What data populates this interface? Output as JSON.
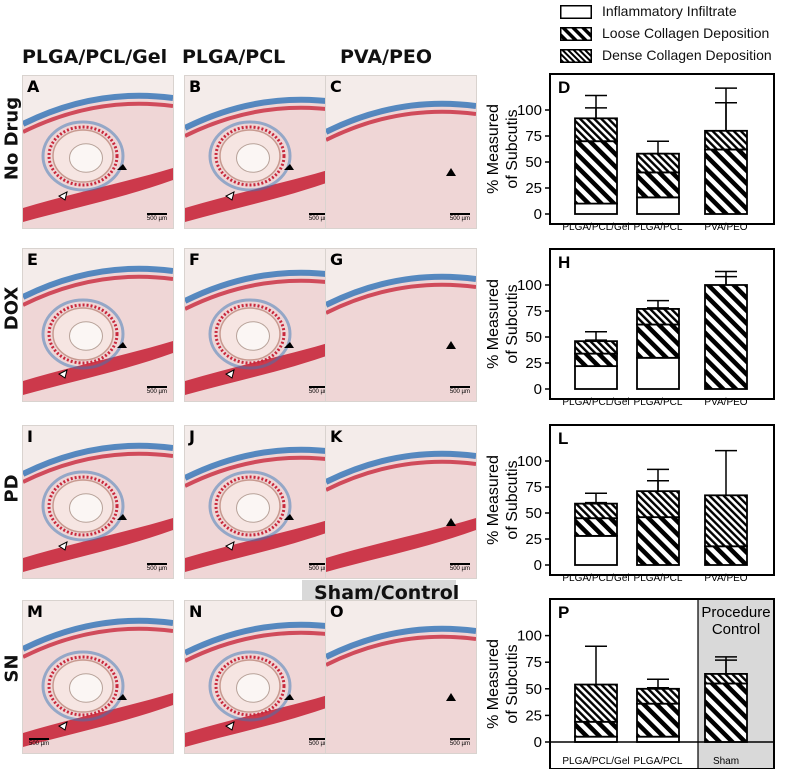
{
  "column_headers": [
    "PLGA/PCL/Gel",
    "PLGA/PCL",
    "PVA/PEO"
  ],
  "row_headers": [
    "No Drug",
    "DOX",
    "PD",
    "SN"
  ],
  "sham_header": "Sham/Control",
  "panel_letters": [
    "A",
    "B",
    "C",
    "E",
    "F",
    "G",
    "I",
    "J",
    "K",
    "M",
    "N",
    "O"
  ],
  "scale_labels": [
    "500 µm",
    "500 µm",
    "500 µm",
    "500 µm",
    "500 µm",
    "500 µm",
    "500 µm",
    "500 µm",
    "500 µm",
    "500 µm",
    "500 µm",
    "500 µm"
  ],
  "legend": [
    {
      "label": "Inflammatory Infiltrate",
      "pattern": "open"
    },
    {
      "label": "Loose Collagen Deposition",
      "pattern": "hatch-wide"
    },
    {
      "label": "Dense Collagen Deposition",
      "pattern": "hatch-dense"
    }
  ],
  "colors": {
    "stain_red": "#c8283c",
    "stain_blue": "#3a78b8",
    "tissue_pink": "#efd6d6",
    "sham_gray": "#d9d9d9"
  },
  "chart_data": [
    {
      "type": "bar",
      "letter": "D",
      "stacked": true,
      "ylabel": "% Measured of Subcutis",
      "ylim": [
        0,
        125
      ],
      "yticks": [
        0,
        25,
        50,
        75,
        100
      ],
      "categories": [
        "PLGA/PCL/Gel",
        "PLGA/PCL",
        "PVA/PEO"
      ],
      "series": [
        {
          "name": "Inflammatory Infiltrate",
          "values": [
            10,
            16,
            0
          ],
          "err": [
            22,
            13,
            0
          ]
        },
        {
          "name": "Loose Collagen Deposition",
          "values": [
            60,
            24,
            62
          ],
          "err": [
            32,
            18,
            45
          ]
        },
        {
          "name": "Dense Collagen Deposition",
          "values": [
            22,
            18,
            18
          ],
          "err": [
            22,
            12,
            41
          ]
        }
      ]
    },
    {
      "type": "bar",
      "letter": "H",
      "stacked": true,
      "ylabel": "% Measured of Subcutis",
      "ylim": [
        0,
        125
      ],
      "yticks": [
        0,
        25,
        50,
        75,
        100
      ],
      "categories": [
        "PLGA/PCL/Gel",
        "PLGA/PCL",
        "PVA/PEO"
      ],
      "series": [
        {
          "name": "Inflammatory Infiltrate",
          "values": [
            22,
            30,
            0
          ],
          "err": [
            14,
            24,
            0
          ]
        },
        {
          "name": "Loose Collagen Deposition",
          "values": [
            12,
            32,
            100
          ],
          "err": [
            13,
            16,
            8
          ]
        },
        {
          "name": "Dense Collagen Deposition",
          "values": [
            12,
            15,
            0
          ],
          "err": [
            9,
            8,
            13
          ]
        }
      ]
    },
    {
      "type": "bar",
      "letter": "L",
      "stacked": true,
      "ylabel": "% Measured of Subcutis",
      "ylim": [
        0,
        125
      ],
      "yticks": [
        0,
        25,
        50,
        75,
        100
      ],
      "categories": [
        "PLGA/PCL/Gel",
        "PLGA/PCL",
        "PVA/PEO"
      ],
      "series": [
        {
          "name": "Inflammatory Infiltrate",
          "values": [
            28,
            0,
            0
          ],
          "err": [
            22,
            0,
            0
          ]
        },
        {
          "name": "Loose Collagen Deposition",
          "values": [
            17,
            46,
            18
          ],
          "err": [
            15,
            35,
            16
          ]
        },
        {
          "name": "Dense Collagen Deposition",
          "values": [
            14,
            25,
            49
          ],
          "err": [
            10,
            21,
            43
          ]
        }
      ]
    },
    {
      "type": "bar",
      "letter": "P",
      "stacked": true,
      "ylabel": "% Measured of Subcutis",
      "ylim": [
        0,
        125
      ],
      "yticks": [
        0,
        25,
        50,
        75,
        100
      ],
      "categories": [
        "PLGA/PCL/Gel",
        "PLGA/PCL",
        "Sham"
      ],
      "series": [
        {
          "name": "Inflammatory Infiltrate",
          "values": [
            5,
            5,
            0
          ],
          "err": [
            7,
            5,
            0
          ]
        },
        {
          "name": "Loose Collagen Deposition",
          "values": [
            14,
            31,
            55
          ],
          "err": [
            10,
            15,
            22
          ]
        },
        {
          "name": "Dense Collagen Deposition",
          "values": [
            35,
            14,
            9
          ],
          "err": [
            36,
            9,
            16
          ]
        }
      ],
      "annotation": "Procedure Control"
    }
  ]
}
